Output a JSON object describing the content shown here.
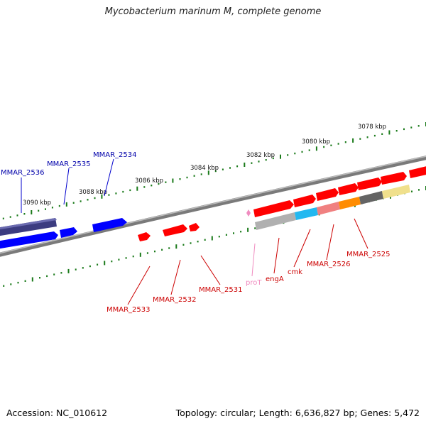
{
  "title": "Mycobacterium marinum M, complete genome",
  "footer": {
    "accession": "Accession: NC_010612",
    "summary": "Topology: circular; Length: 6,636,827 bp; Genes: 5,472"
  },
  "colors": {
    "forward_gene": "#ff0000",
    "reverse_gene": "#0000ff",
    "reverse_gene_dark": "#3c3c80",
    "backbone": "#888888",
    "ticks": "#1a7a1a",
    "forward_label": "#cc0000",
    "reverse_label": "#0000aa",
    "trna_label": "#f08cc0"
  },
  "scale_labels": [
    "3078 kbp",
    "3080 kbp",
    "3082 kbp",
    "3084 kbp",
    "3086 kbp",
    "3088 kbp",
    "3090 kbp"
  ],
  "gene_labels": {
    "forward": [
      "MMAR_2525",
      "MMAR_2526",
      "cmk",
      "engA",
      "proT",
      "MMAR_2531",
      "MMAR_2532",
      "MMAR_2533"
    ],
    "reverse": [
      "MMAR_2534",
      "MMAR_2535",
      "MMAR_2536"
    ]
  }
}
